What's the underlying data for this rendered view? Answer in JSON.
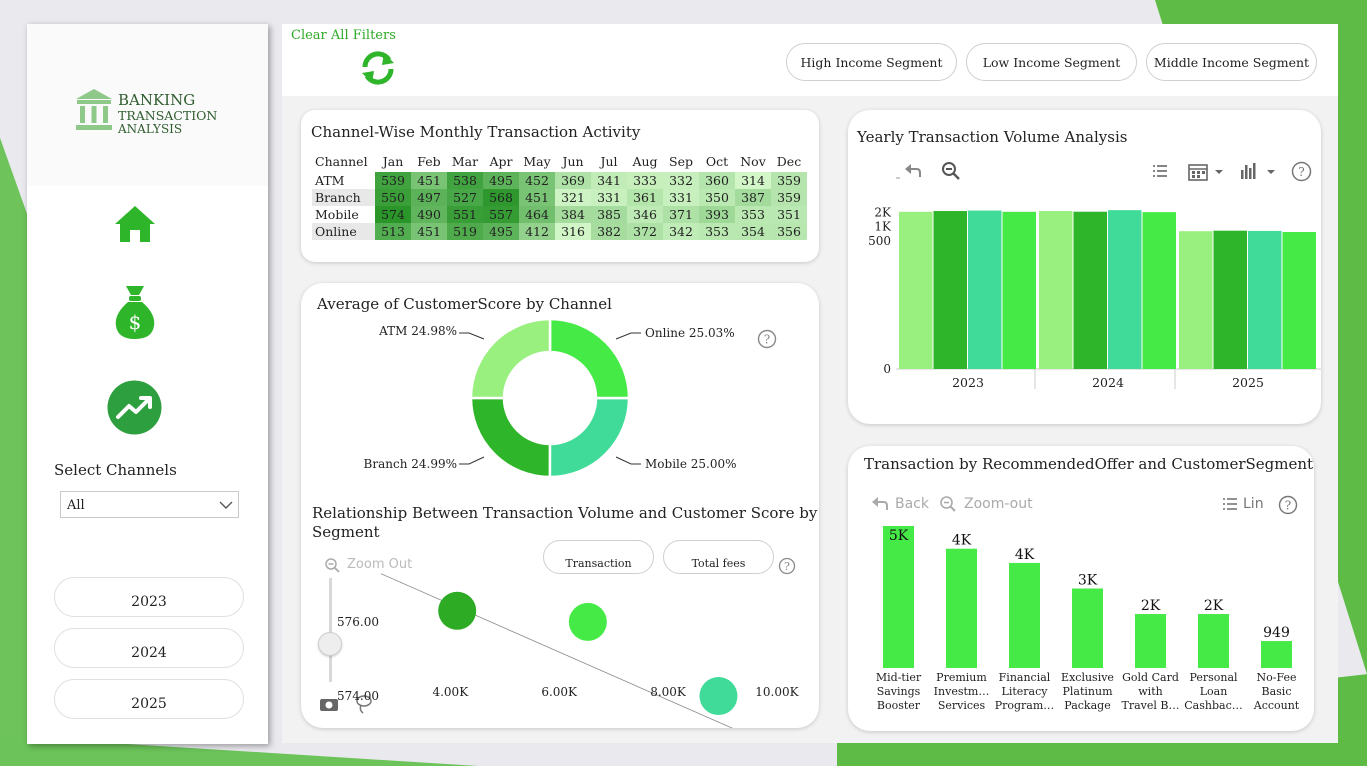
{
  "sidebar": {
    "logo_line1": "BANKING",
    "logo_line2": "TRANSACTION",
    "logo_line3": "ANALYSIS",
    "select_label": "Select Channels",
    "select_value": "All",
    "years": [
      "2023",
      "2024",
      "2025"
    ]
  },
  "topbar": {
    "clear_filters": "Clear All Filters",
    "segments": [
      "High Income Segment",
      "Low Income Segment",
      "Middle Income Segment"
    ]
  },
  "heatmap": {
    "title": "Channel-Wise Monthly Transaction Activity",
    "corner": "Channel",
    "months": [
      "Jan",
      "Feb",
      "Mar",
      "Apr",
      "May",
      "Jun",
      "Jul",
      "Aug",
      "Sep",
      "Oct",
      "Nov",
      "Dec"
    ],
    "rows": [
      {
        "channel": "ATM",
        "values": [
          "539",
          "451",
          "538",
          "495",
          "452",
          "369",
          "341",
          "333",
          "332",
          "360",
          "314",
          "359"
        ]
      },
      {
        "channel": "Branch",
        "values": [
          "550",
          "497",
          "527",
          "568",
          "451",
          "321",
          "331",
          "361",
          "331",
          "350",
          "387",
          "359"
        ]
      },
      {
        "channel": "Mobile",
        "values": [
          "574",
          "490",
          "551",
          "557",
          "464",
          "384",
          "385",
          "346",
          "371",
          "393",
          "353",
          "351"
        ]
      },
      {
        "channel": "Online",
        "values": [
          "513",
          "451",
          "519",
          "495",
          "412",
          "316",
          "382",
          "372",
          "342",
          "353",
          "354",
          "356"
        ]
      }
    ]
  },
  "yearly": {
    "title": "Yearly Transaction Volume Analysis",
    "y_ticks": [
      "2K",
      "1K",
      "500",
      "0"
    ],
    "x_labels": [
      "2023",
      "2024",
      "2025"
    ]
  },
  "donut": {
    "title": "Average of CustomerScore by Channel",
    "labels": [
      "Online 25.03%",
      "Mobile 25.00%",
      "Branch 24.99%",
      "ATM 24.98%"
    ],
    "help": "?"
  },
  "scatter": {
    "title_line1": "Relationship Between Transaction Volume and Customer Score by",
    "title_line2": "Segment",
    "zoom_out": "Zoom Out",
    "pill1": "Transaction",
    "pill2": "Total fees",
    "y_ticks": [
      "576.00",
      "574.00"
    ],
    "x_ticks": [
      "4.00K",
      "6.00K",
      "8.00K",
      "10.00K"
    ],
    "help": "?"
  },
  "offers": {
    "title": "Transaction by RecommendedOffer and CustomerSegment",
    "back": "Back",
    "zoom_out": "Zoom-out",
    "lin": "Lin",
    "help": "?",
    "labels": [
      "5K",
      "4K",
      "4K",
      "3K",
      "2K",
      "2K",
      "949"
    ],
    "categories": [
      [
        "Mid-tier",
        "Savings",
        "Booster"
      ],
      [
        "Premium",
        "Investm…",
        "Services"
      ],
      [
        "Financial",
        "Literacy",
        "Program…"
      ],
      [
        "Exclusive",
        "Platinum",
        "Package"
      ],
      [
        "Gold Card",
        "with",
        "Travel B…"
      ],
      [
        "Personal",
        "Loan",
        "Cashbac…"
      ],
      [
        "No-Fee",
        "Basic",
        "Account"
      ]
    ]
  },
  "chart_data": [
    {
      "type": "heatmap",
      "title": "Channel-Wise Monthly Transaction Activity",
      "x": [
        "Jan",
        "Feb",
        "Mar",
        "Apr",
        "May",
        "Jun",
        "Jul",
        "Aug",
        "Sep",
        "Oct",
        "Nov",
        "Dec"
      ],
      "y": [
        "ATM",
        "Branch",
        "Mobile",
        "Online"
      ],
      "values": [
        [
          539,
          451,
          538,
          495,
          452,
          369,
          341,
          333,
          332,
          360,
          314,
          359
        ],
        [
          550,
          497,
          527,
          568,
          451,
          321,
          331,
          361,
          331,
          350,
          387,
          359
        ],
        [
          574,
          490,
          551,
          557,
          464,
          384,
          385,
          346,
          371,
          393,
          353,
          351
        ],
        [
          513,
          451,
          519,
          495,
          412,
          316,
          382,
          372,
          342,
          353,
          354,
          356
        ]
      ]
    },
    {
      "type": "bar",
      "title": "Yearly Transaction Volume Analysis",
      "categories": [
        "2023",
        "2024",
        "2025"
      ],
      "series": [
        {
          "values": [
            2050,
            2130,
            800
          ]
        },
        {
          "values": [
            2130,
            2060,
            820
          ]
        },
        {
          "values": [
            2180,
            2220,
            810
          ]
        },
        {
          "values": [
            2050,
            2020,
            770
          ]
        }
      ],
      "ylim": [
        0,
        2350
      ],
      "colors": [
        "#99f07f",
        "#2eb52a",
        "#40db98",
        "#46ea46"
      ]
    },
    {
      "type": "pie",
      "title": "Average of CustomerScore by Channel",
      "categories": [
        "Online",
        "Mobile",
        "Branch",
        "ATM"
      ],
      "values": [
        25.03,
        25.0,
        24.99,
        24.98
      ],
      "colors": [
        "#46ea46",
        "#40db98",
        "#2eb52a",
        "#99f07f"
      ]
    },
    {
      "type": "scatter",
      "title": "Relationship Between Transaction Volume and Customer Score by Segment",
      "points": [
        {
          "x": 4200,
          "y": 576.3,
          "color": "#2eab25"
        },
        {
          "x": 6600,
          "y": 576.0,
          "color": "#46ea46"
        },
        {
          "x": 9000,
          "y": 574.0,
          "color": "#40db98"
        }
      ],
      "xlim": [
        2800,
        10700
      ],
      "ylim": [
        573.3,
        577.4
      ],
      "trend": [
        [
          2800,
          577.3
        ],
        [
          10700,
          572.2
        ]
      ]
    },
    {
      "type": "bar",
      "title": "Transaction by RecommendedOffer and CustomerSegment",
      "categories": [
        "Mid-tier Savings Booster",
        "Premium Investm… Services",
        "Financial Literacy Program…",
        "Exclusive Platinum Package",
        "Gold Card with Travel B…",
        "Personal Loan Cashbac…",
        "No-Fee Basic Account"
      ],
      "values": [
        5000,
        4200,
        3700,
        2800,
        1900,
        1900,
        949
      ],
      "labels": [
        "5K",
        "4K",
        "4K",
        "3K",
        "2K",
        "2K",
        "949"
      ],
      "ylim": [
        0,
        5000
      ],
      "color": "#46ea46"
    }
  ]
}
